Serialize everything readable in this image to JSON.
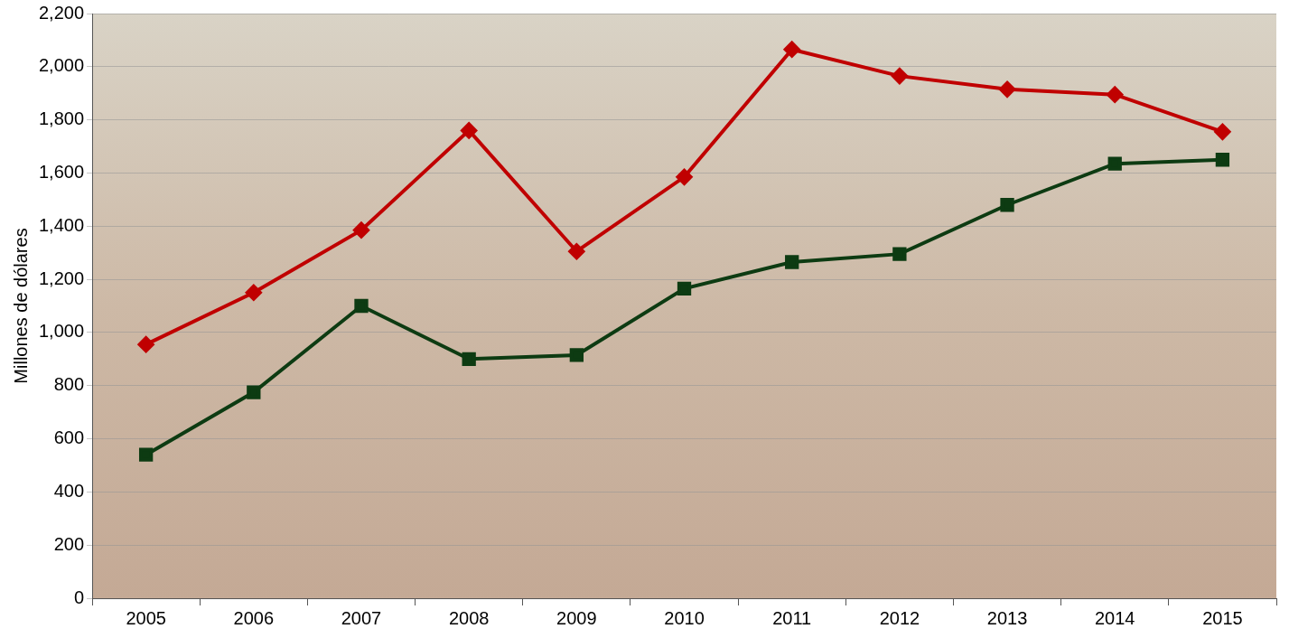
{
  "chart_data": {
    "type": "line",
    "y_label": "Millones de dólares",
    "categories": [
      "2005",
      "2006",
      "2007",
      "2008",
      "2009",
      "2010",
      "2011",
      "2012",
      "2013",
      "2014",
      "2015"
    ],
    "series": [
      {
        "color": "#c00000",
        "marker": "diamond",
        "line_style": "solid",
        "values": [
          955,
          1150,
          1385,
          1760,
          1305,
          1585,
          2065,
          1965,
          1915,
          1895,
          1755
        ]
      },
      {
        "color": "#0d3b12",
        "marker": "square",
        "line_style": "solid",
        "values": [
          540,
          775,
          1100,
          900,
          915,
          1165,
          1265,
          1295,
          1480,
          1635,
          1650
        ]
      }
    ],
    "ylim": [
      0,
      2200
    ],
    "yticks": [
      0,
      200,
      400,
      600,
      800,
      {
        "value": 1000,
        "label": "1,000"
      },
      {
        "value": 1200,
        "label": "1,200"
      },
      {
        "value": 1400,
        "label": "1,400"
      },
      {
        "value": 1600,
        "label": "1,600"
      },
      {
        "value": 1800,
        "label": "1,800"
      },
      {
        "value": 2000,
        "label": "2,000"
      },
      {
        "value": 2200,
        "label": "2,200"
      }
    ],
    "grid": true
  }
}
